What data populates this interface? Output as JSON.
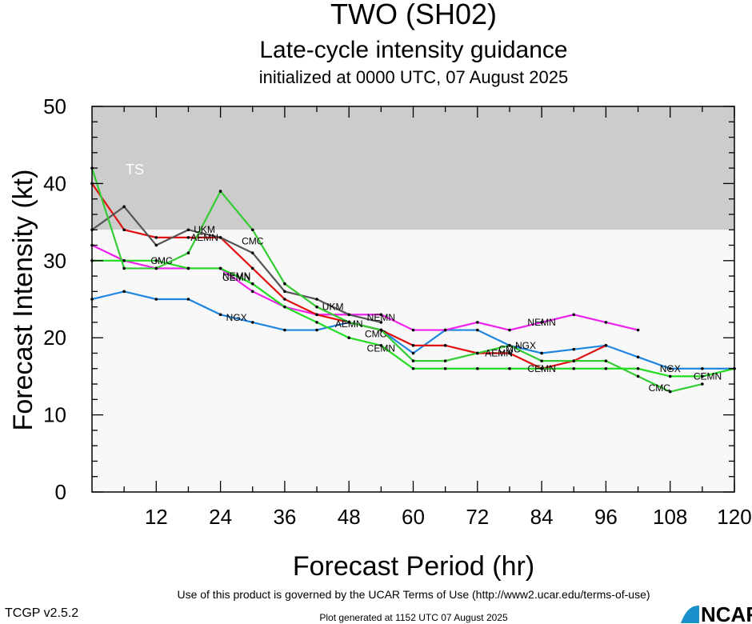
{
  "chart_data": {
    "type": "line",
    "title": "TWO (SH02)",
    "subtitle": "Late-cycle intensity guidance",
    "subtitle2": "initialized at 0000 UTC, 07 August 2025",
    "xlabel": "Forecast Period (hr)",
    "ylabel": "Forecast Intensity (kt)",
    "xlim": [
      0,
      120
    ],
    "ylim": [
      0,
      50
    ],
    "xticks": [
      12,
      24,
      36,
      48,
      60,
      72,
      84,
      96,
      108,
      120
    ],
    "yticks": [
      0,
      10,
      20,
      30,
      40,
      50
    ],
    "grid": false,
    "bands": [
      {
        "label": "TS",
        "from": 34,
        "to": 50,
        "color": "#cccccc"
      },
      {
        "label": "",
        "from": 0,
        "to": 34,
        "color": "#f8f8f8"
      }
    ],
    "series": [
      {
        "name": "NGX",
        "color": "#1f86e0",
        "x": [
          0,
          6,
          12,
          18,
          24,
          30,
          36,
          42,
          48,
          54,
          60,
          66,
          72,
          78,
          84,
          90,
          96,
          102,
          108,
          114,
          120
        ],
        "y": [
          25,
          26,
          25,
          25,
          23,
          22,
          21,
          21,
          22,
          21,
          18,
          21,
          21,
          19,
          18,
          18.5,
          19,
          17.5,
          16,
          16,
          16
        ],
        "labels": [
          {
            "x": 27,
            "y": 22.6
          },
          {
            "x": 81,
            "y": 19
          },
          {
            "x": 108,
            "y": 16
          }
        ]
      },
      {
        "name": "NEMN",
        "color": "#ee22ee",
        "x": [
          0,
          6,
          12,
          18,
          24,
          30,
          36,
          42,
          48,
          54,
          60,
          66,
          72,
          78,
          84,
          90,
          96,
          102
        ],
        "y": [
          32,
          30,
          29,
          29,
          29,
          26,
          24,
          23,
          23,
          23,
          21,
          21,
          22,
          21,
          22,
          23,
          22,
          21
        ],
        "labels": [
          {
            "x": 27,
            "y": 28
          },
          {
            "x": 54,
            "y": 22.6
          },
          {
            "x": 84,
            "y": 22
          }
        ]
      },
      {
        "name": "AEMN",
        "color": "#e01010",
        "x": [
          0,
          6,
          12,
          18,
          24,
          30,
          36,
          42,
          48,
          54,
          60,
          66,
          72,
          78,
          84,
          90,
          96
        ],
        "y": [
          40,
          34,
          33,
          33,
          33,
          29,
          25,
          23,
          22,
          21,
          19,
          19,
          18,
          18,
          16,
          17,
          19
        ],
        "labels": [
          {
            "x": 21,
            "y": 33
          },
          {
            "x": 48,
            "y": 21.8
          },
          {
            "x": 76,
            "y": 18
          }
        ]
      },
      {
        "name": "UKM",
        "color": "#555555",
        "x": [
          0,
          6,
          12,
          18,
          24,
          30,
          36,
          42,
          48,
          54
        ],
        "y": [
          34,
          37,
          32,
          34,
          33,
          31,
          26,
          25,
          23,
          22
        ],
        "labels": [
          {
            "x": 21,
            "y": 34
          },
          {
            "x": 45,
            "y": 24
          }
        ]
      },
      {
        "name": "CMC",
        "color": "#33cc33",
        "x": [
          0,
          6,
          12,
          18,
          24,
          30,
          36,
          42,
          48,
          54,
          60,
          66,
          72,
          78,
          84,
          90,
          96,
          102,
          108,
          114
        ],
        "y": [
          42,
          29,
          29,
          31,
          39,
          34,
          27,
          24,
          22,
          21,
          17,
          17,
          18,
          19,
          17,
          17,
          17,
          15,
          13,
          14
        ],
        "labels": [
          {
            "x": 13,
            "y": 30
          },
          {
            "x": 30,
            "y": 32.5
          },
          {
            "x": 53,
            "y": 20.5
          },
          {
            "x": 78,
            "y": 18.5
          },
          {
            "x": 106,
            "y": 13.5
          }
        ]
      },
      {
        "name": "CEMN",
        "color": "#22dd22",
        "x": [
          0,
          6,
          12,
          18,
          24,
          30,
          36,
          42,
          48,
          54,
          60,
          66,
          72,
          78,
          84,
          90,
          96,
          102,
          108,
          114,
          120
        ],
        "y": [
          30,
          30,
          30,
          29,
          29,
          27,
          24,
          22,
          20,
          19,
          16,
          16,
          16,
          16,
          16,
          16,
          16,
          16,
          15,
          15,
          16
        ],
        "labels": [
          {
            "x": 27,
            "y": 27.8
          },
          {
            "x": 54,
            "y": 18.6
          },
          {
            "x": 84,
            "y": 16
          },
          {
            "x": 115,
            "y": 15
          }
        ]
      }
    ]
  },
  "footer": {
    "terms": "Use of this product is governed by the UCAR Terms of Use (http://www2.ucar.edu/terms-of-use)",
    "version": "TCGP v2.5.2",
    "generated": "Plot generated at 1152 UTC   07 August 2025",
    "logo_text": "NCAR"
  }
}
